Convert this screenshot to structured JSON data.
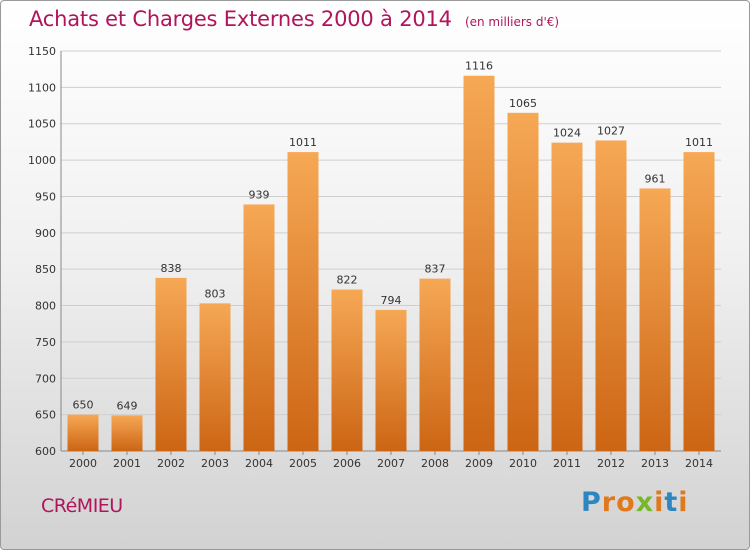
{
  "title": "Achats et Charges Externes 2000 à 2014",
  "unit": "(en milliers d'€)",
  "town": "CRéMIEU",
  "brand": {
    "text": "Proxiti",
    "letter_colors": [
      "#2e86c1",
      "#e0781c",
      "#e0781c",
      "#76b82a",
      "#e0781c",
      "#2e86c1",
      "#e0781c"
    ]
  },
  "colors": {
    "bar_top": "#f6a855",
    "bar_bottom": "#cc6514",
    "grid": "#cfcfcf",
    "text": "#333333",
    "title": "#b0155b"
  },
  "chart_data": {
    "type": "bar",
    "title": "Achats et Charges Externes 2000 à 2014",
    "subtitle": "(en milliers d'€)",
    "categories": [
      "2000",
      "2001",
      "2002",
      "2003",
      "2004",
      "2005",
      "2006",
      "2007",
      "2008",
      "2009",
      "2010",
      "2011",
      "2012",
      "2013",
      "2014"
    ],
    "values": [
      650,
      649,
      838,
      803,
      939,
      1011,
      822,
      794,
      837,
      1116,
      1065,
      1024,
      1027,
      961,
      1011
    ],
    "yticks": [
      600,
      650,
      700,
      750,
      800,
      850,
      900,
      950,
      1000,
      1050,
      1100,
      1150
    ],
    "ylim": [
      600,
      1150
    ],
    "grid": true,
    "legend": "none"
  }
}
